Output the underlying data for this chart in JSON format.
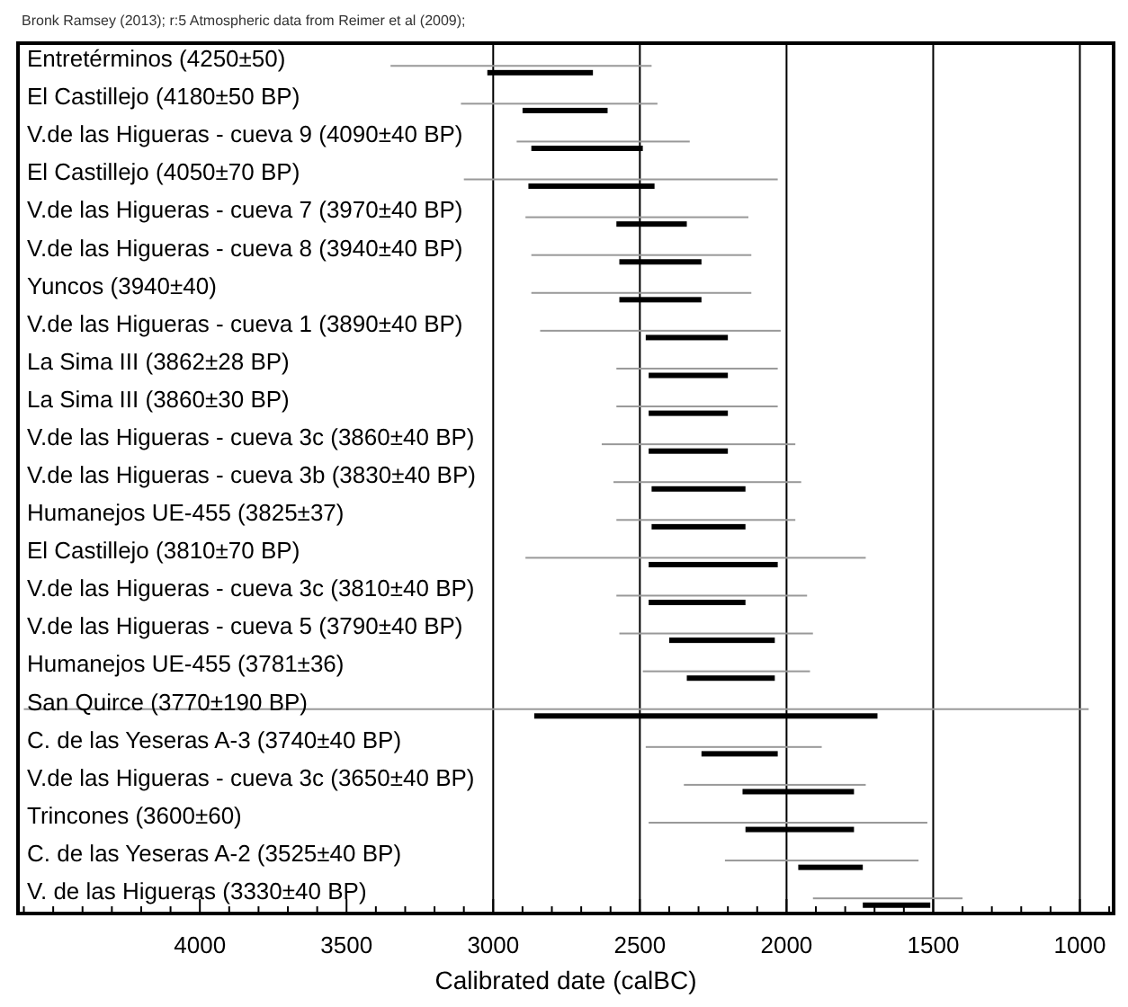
{
  "chart_data": {
    "type": "bar",
    "orientation": "horizontal",
    "title": "Bronk Ramsey (2013); r:5 Atmospheric data from Reimer et al (2009);",
    "xlabel": "Calibrated date (calBC)",
    "categories": [
      "Entretérminos (4250±50)",
      "El Castillejo (4180±50 BP)",
      "V.de las Higueras - cueva 9 (4090±40 BP)",
      "El Castillejo (4050±70 BP)",
      "V.de las Higueras - cueva 7 (3970±40 BP)",
      "V.de las Higueras - cueva 8 (3940±40 BP)",
      "Yuncos (3940±40)",
      "V.de las Higueras - cueva 1 (3890±40 BP)",
      "La Sima III (3862±28 BP)",
      "La Sima III (3860±30 BP)",
      "V.de las Higueras - cueva 3c (3860±40 BP)",
      "V.de las Higueras - cueva 3b (3830±40 BP)",
      "Humanejos UE-455 (3825±37)",
      "El Castillejo (3810±70 BP)",
      "V.de las Higueras - cueva 3c (3810±40 BP)",
      "V.de las Higueras - cueva 5 (3790±40 BP)",
      "Humanejos UE-455 (3781±36)",
      "San Quirce (3770±190 BP)",
      "C. de las Yeseras A-3 (3740±40 BP)",
      "V.de las Higueras - cueva 3c (3650±40 BP)",
      "Trincones (3600±60)",
      "C. de las Yeseras A-2 (3525±40 BP)",
      "V. de las Higueras (3330±40 BP)"
    ],
    "series": [
      {
        "color": "#999999",
        "base": [
          2460,
          2440,
          2330,
          2030,
          2130,
          2120,
          2120,
          2020,
          2030,
          2030,
          1970,
          1950,
          1970,
          1730,
          1930,
          1910,
          1920,
          970,
          1880,
          1730,
          1520,
          1550,
          1400
        ],
        "values": [
          890,
          670,
          590,
          1070,
          760,
          750,
          750,
          820,
          550,
          550,
          660,
          640,
          610,
          1160,
          650,
          660,
          570,
          3630,
          600,
          620,
          950,
          660,
          510
        ]
      },
      {
        "color": "#000000",
        "base": [
          2660,
          2610,
          2490,
          2450,
          2340,
          2290,
          2290,
          2200,
          2200,
          2200,
          2200,
          2140,
          2140,
          2030,
          2140,
          2040,
          2040,
          1690,
          2030,
          1770,
          1770,
          1740,
          1510
        ],
        "values": [
          360,
          290,
          380,
          430,
          240,
          280,
          280,
          280,
          270,
          270,
          270,
          320,
          320,
          440,
          330,
          360,
          300,
          1170,
          260,
          380,
          370,
          220,
          230
        ]
      }
    ],
    "xlim": [
      4620,
      885
    ],
    "xticks": [
      {
        "value": 4600,
        "label": null
      },
      {
        "value": 4500,
        "label": null
      },
      {
        "value": 4400,
        "label": null
      },
      {
        "value": 4300,
        "label": null
      },
      {
        "value": 4200,
        "label": null
      },
      {
        "value": 4100,
        "label": null
      },
      4000,
      {
        "value": 3900,
        "label": null
      },
      {
        "value": 3800,
        "label": null
      },
      {
        "value": 3700,
        "label": null
      },
      {
        "value": 3600,
        "label": null
      },
      3500,
      {
        "value": 3400,
        "label": null
      },
      {
        "value": 3300,
        "label": null
      },
      {
        "value": 3200,
        "label": null
      },
      {
        "value": 3100,
        "label": null
      },
      3000,
      {
        "value": 2900,
        "label": null
      },
      {
        "value": 2800,
        "label": null
      },
      {
        "value": 2700,
        "label": null
      },
      {
        "value": 2600,
        "label": null
      },
      2500,
      {
        "value": 2400,
        "label": null
      },
      {
        "value": 2300,
        "label": null
      },
      {
        "value": 2200,
        "label": null
      },
      {
        "value": 2100,
        "label": null
      },
      2000,
      {
        "value": 1900,
        "label": null
      },
      {
        "value": 1800,
        "label": null
      },
      {
        "value": 1700,
        "label": null
      },
      {
        "value": 1600,
        "label": null
      },
      1500,
      {
        "value": 1400,
        "label": null
      },
      {
        "value": 1300,
        "label": null
      },
      {
        "value": 1200,
        "label": null
      },
      {
        "value": 1100,
        "label": null
      },
      1000,
      {
        "value": 900,
        "label": null
      }
    ],
    "ref_lines": [
      {
        "axis": "x",
        "value": 3000,
        "color": "#000000"
      },
      {
        "axis": "x",
        "value": 2500,
        "color": "#000000"
      },
      {
        "axis": "x",
        "value": 2000,
        "color": "#000000"
      },
      {
        "axis": "x",
        "value": 1500,
        "color": "#000000"
      },
      {
        "axis": "x",
        "value": 1000,
        "color": "#000000"
      }
    ],
    "grid": false
  }
}
